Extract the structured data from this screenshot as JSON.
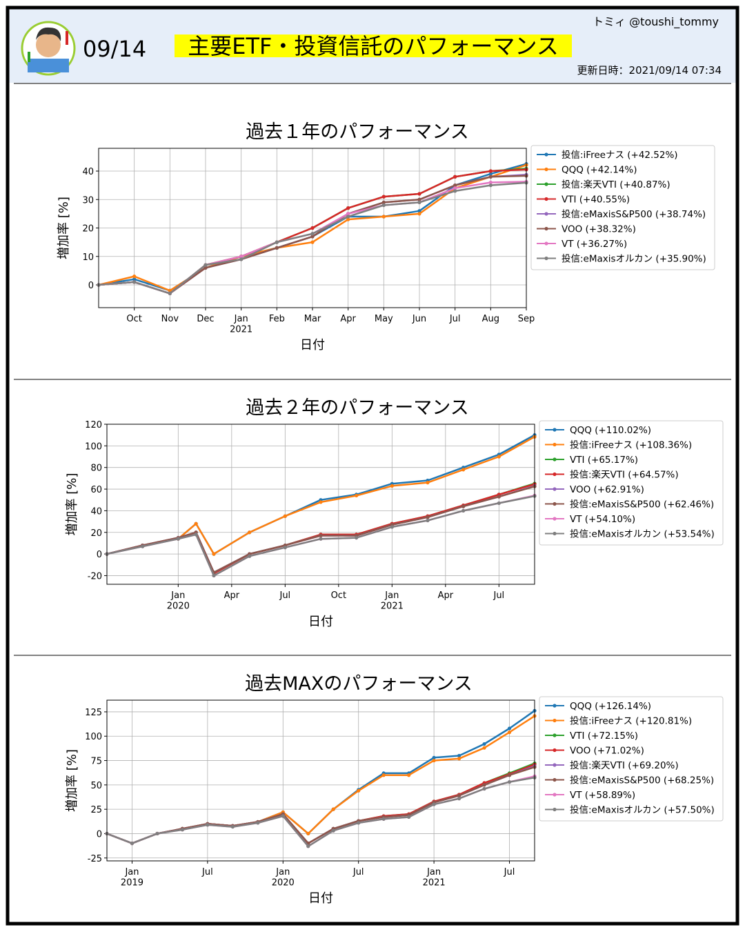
{
  "header": {
    "author": "トミィ @toushi_tommy",
    "date": "09/14",
    "title": "主要ETF・投資信託のパフォーマンス",
    "updated": "更新日時：2021/09/14 07:34"
  },
  "chart_data": [
    {
      "type": "line",
      "title": "過去１年のパフォーマンス",
      "xlabel": "日付",
      "ylabel": "増加率 [%]",
      "grid": true,
      "legend": "outside right",
      "x": [
        "2020-09",
        "2020-10",
        "2020-11",
        "2020-12",
        "2021-01",
        "2021-02",
        "2021-03",
        "2021-04",
        "2021-05",
        "2021-06",
        "2021-07",
        "2021-08",
        "2021-09"
      ],
      "xlim": [
        "2020-09",
        "2021-09"
      ],
      "xticks": [
        {
          "value": "2020-10",
          "label": "Oct"
        },
        {
          "value": "2020-11",
          "label": "Nov"
        },
        {
          "value": "2020-12",
          "label": "Dec"
        },
        {
          "value": "2021-01",
          "label": "Jan\n2021"
        },
        {
          "value": "2021-02",
          "label": "Feb"
        },
        {
          "value": "2021-03",
          "label": "Mar"
        },
        {
          "value": "2021-04",
          "label": "Apr"
        },
        {
          "value": "2021-05",
          "label": "May"
        },
        {
          "value": "2021-06",
          "label": "Jun"
        },
        {
          "value": "2021-07",
          "label": "Jul"
        },
        {
          "value": "2021-08",
          "label": "Aug"
        },
        {
          "value": "2021-09",
          "label": "Sep"
        }
      ],
      "ylim": [
        -8,
        48
      ],
      "yticks": [
        0,
        10,
        20,
        30,
        40
      ],
      "series": [
        {
          "name": "投信:iFreeナス (+42.52%)",
          "color": "#1f77b4",
          "values": [
            0,
            2,
            -2,
            6,
            10,
            13,
            17,
            24,
            24,
            26,
            35,
            39,
            42.52
          ]
        },
        {
          "name": "QQQ (+42.14%)",
          "color": "#ff7f0e",
          "values": [
            0,
            3,
            -2,
            6,
            10,
            13,
            15,
            23,
            24,
            25,
            34,
            38,
            42.14
          ]
        },
        {
          "name": "投信:楽天VTI (+40.87%)",
          "color": "#2ca02c",
          "values": [
            0,
            1,
            -3,
            7,
            10,
            15,
            20,
            27,
            31,
            32,
            38,
            40,
            40.87
          ]
        },
        {
          "name": "VTI (+40.55%)",
          "color": "#d62728",
          "values": [
            0,
            1,
            -3,
            7,
            10,
            15,
            20,
            27,
            31,
            32,
            38,
            40,
            40.55
          ]
        },
        {
          "name": "投信:eMaxisS&P500 (+38.74%)",
          "color": "#9467bd",
          "values": [
            0,
            1,
            -3,
            6,
            9,
            13,
            17,
            25,
            29,
            30,
            35,
            38,
            38.74
          ]
        },
        {
          "name": "VOO (+38.32%)",
          "color": "#8c564b",
          "values": [
            0,
            1,
            -3,
            6,
            9,
            13,
            17,
            25,
            29,
            30,
            35,
            38,
            38.32
          ]
        },
        {
          "name": "VT (+36.27%)",
          "color": "#e377c2",
          "values": [
            0,
            1,
            -3,
            7,
            10,
            15,
            18,
            25,
            28,
            29,
            34,
            36,
            36.27
          ]
        },
        {
          "name": "投信:eMaxisオルカン (+35.90%)",
          "color": "#7f7f7f",
          "values": [
            0,
            1,
            -3,
            7,
            9,
            15,
            18,
            24,
            28,
            29,
            33,
            35,
            35.9
          ]
        }
      ]
    },
    {
      "type": "line",
      "title": "過去２年のパフォーマンス",
      "xlabel": "日付",
      "ylabel": "増加率 [%]",
      "grid": true,
      "legend": "outside right",
      "x": [
        "2019-09",
        "2019-11",
        "2020-01",
        "2020-02",
        "2020-03",
        "2020-05",
        "2020-07",
        "2020-09",
        "2020-11",
        "2021-01",
        "2021-03",
        "2021-05",
        "2021-07",
        "2021-09"
      ],
      "xlim": [
        "2019-09",
        "2021-09"
      ],
      "xticks": [
        {
          "value": "2020-01",
          "label": "Jan\n2020"
        },
        {
          "value": "2020-04",
          "label": "Apr"
        },
        {
          "value": "2020-07",
          "label": "Jul"
        },
        {
          "value": "2020-10",
          "label": "Oct"
        },
        {
          "value": "2021-01",
          "label": "Jan\n2021"
        },
        {
          "value": "2021-04",
          "label": "Apr"
        },
        {
          "value": "2021-07",
          "label": "Jul"
        }
      ],
      "ylim": [
        -28,
        120
      ],
      "yticks": [
        -20,
        0,
        20,
        40,
        60,
        80,
        100,
        120
      ],
      "series": [
        {
          "name": "QQQ (+110.02%)",
          "color": "#1f77b4",
          "values": [
            0,
            8,
            14,
            28,
            0,
            20,
            35,
            50,
            55,
            65,
            68,
            80,
            92,
            110.02
          ]
        },
        {
          "name": "投信:iFreeナス (+108.36%)",
          "color": "#ff7f0e",
          "values": [
            0,
            8,
            14,
            28,
            0,
            20,
            35,
            48,
            54,
            63,
            66,
            78,
            90,
            108.36
          ]
        },
        {
          "name": "VTI (+65.17%)",
          "color": "#2ca02c",
          "values": [
            0,
            8,
            15,
            20,
            -18,
            0,
            8,
            18,
            18,
            28,
            35,
            45,
            55,
            65.17
          ]
        },
        {
          "name": "投信:楽天VTI (+64.57%)",
          "color": "#d62728",
          "values": [
            0,
            8,
            15,
            20,
            -18,
            0,
            8,
            18,
            18,
            28,
            35,
            45,
            55,
            64.57
          ]
        },
        {
          "name": "VOO (+62.91%)",
          "color": "#9467bd",
          "values": [
            0,
            8,
            15,
            20,
            -17,
            0,
            8,
            17,
            17,
            27,
            34,
            44,
            53,
            62.91
          ]
        },
        {
          "name": "投信:eMaxisS&P500 (+62.46%)",
          "color": "#8c564b",
          "values": [
            0,
            8,
            15,
            20,
            -17,
            0,
            8,
            17,
            17,
            27,
            34,
            44,
            53,
            62.46
          ]
        },
        {
          "name": "VT (+54.10%)",
          "color": "#e377c2",
          "values": [
            0,
            7,
            14,
            18,
            -20,
            -2,
            6,
            14,
            15,
            25,
            31,
            40,
            47,
            54.1
          ]
        },
        {
          "name": "投信:eMaxisオルカン (+53.54%)",
          "color": "#7f7f7f",
          "values": [
            0,
            7,
            14,
            18,
            -20,
            -2,
            6,
            14,
            15,
            25,
            31,
            40,
            47,
            53.54
          ]
        }
      ]
    },
    {
      "type": "line",
      "title": "過去MAXのパフォーマンス",
      "xlabel": "日付",
      "ylabel": "増加率 [%]",
      "grid": true,
      "legend": "outside right",
      "x": [
        "2018-11",
        "2019-01",
        "2019-03",
        "2019-05",
        "2019-07",
        "2019-09",
        "2019-11",
        "2020-01",
        "2020-03",
        "2020-05",
        "2020-07",
        "2020-09",
        "2020-11",
        "2021-01",
        "2021-03",
        "2021-05",
        "2021-07",
        "2021-09"
      ],
      "xlim": [
        "2018-11",
        "2021-09"
      ],
      "xticks": [
        {
          "value": "2019-01",
          "label": "Jan\n2019"
        },
        {
          "value": "2019-07",
          "label": "Jul"
        },
        {
          "value": "2020-01",
          "label": "Jan\n2020"
        },
        {
          "value": "2020-07",
          "label": "Jul"
        },
        {
          "value": "2021-01",
          "label": "Jan\n2021"
        },
        {
          "value": "2021-07",
          "label": "Jul"
        }
      ],
      "ylim": [
        -28,
        137
      ],
      "yticks": [
        -25,
        0,
        25,
        50,
        75,
        100,
        125
      ],
      "series": [
        {
          "name": "QQQ (+126.14%)",
          "color": "#1f77b4",
          "values": [
            0,
            -10,
            0,
            5,
            10,
            8,
            12,
            22,
            0,
            25,
            45,
            62,
            62,
            78,
            80,
            92,
            108,
            126.14
          ]
        },
        {
          "name": "投信:iFreeナス (+120.81%)",
          "color": "#ff7f0e",
          "values": [
            0,
            -10,
            0,
            5,
            10,
            8,
            12,
            22,
            0,
            25,
            44,
            60,
            60,
            75,
            77,
            88,
            104,
            120.81
          ]
        },
        {
          "name": "VTI (+72.15%)",
          "color": "#2ca02c",
          "values": [
            0,
            -10,
            0,
            5,
            10,
            8,
            12,
            20,
            -10,
            5,
            13,
            18,
            20,
            33,
            40,
            52,
            62,
            72.15
          ]
        },
        {
          "name": "VOO (+71.02%)",
          "color": "#d62728",
          "values": [
            0,
            -10,
            0,
            5,
            10,
            8,
            12,
            20,
            -10,
            5,
            13,
            18,
            20,
            33,
            40,
            52,
            61,
            71.02
          ]
        },
        {
          "name": "投信:楽天VTI (+69.20%)",
          "color": "#9467bd",
          "values": [
            0,
            -10,
            0,
            5,
            10,
            8,
            12,
            20,
            -10,
            5,
            13,
            17,
            19,
            32,
            39,
            50,
            60,
            69.2
          ]
        },
        {
          "name": "投信:eMaxisS&P500 (+68.25%)",
          "color": "#8c564b",
          "values": [
            0,
            -10,
            0,
            5,
            10,
            8,
            12,
            20,
            -10,
            5,
            13,
            17,
            19,
            32,
            39,
            50,
            60,
            68.25
          ]
        },
        {
          "name": "VT (+58.89%)",
          "color": "#e377c2",
          "values": [
            0,
            -10,
            0,
            4,
            9,
            7,
            11,
            18,
            -13,
            3,
            11,
            15,
            17,
            30,
            36,
            46,
            53,
            58.89
          ]
        },
        {
          "name": "投信:eMaxisオルカン (+57.50%)",
          "color": "#7f7f7f",
          "values": [
            0,
            -10,
            0,
            4,
            9,
            7,
            11,
            18,
            -13,
            3,
            11,
            15,
            17,
            30,
            36,
            46,
            53,
            57.5
          ]
        }
      ]
    }
  ]
}
